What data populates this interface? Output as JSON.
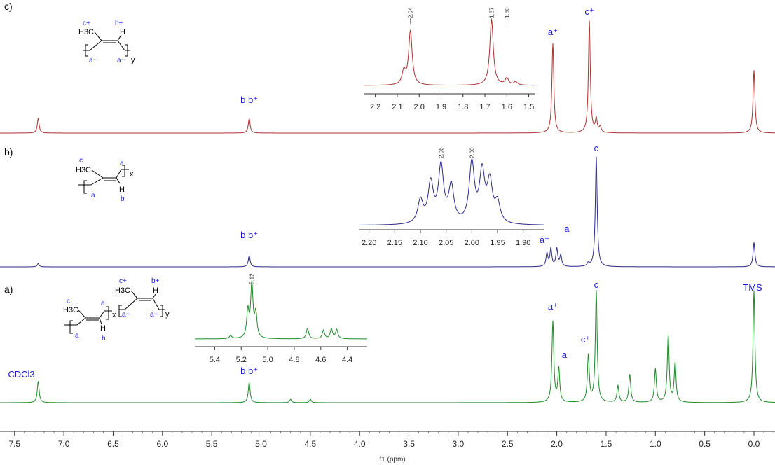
{
  "chart_data": {
    "type": "line",
    "title": "",
    "xlabel": "f1 (ppm)",
    "ylabel": "",
    "xlim": [
      7.6,
      -0.2
    ],
    "x_reversed": true,
    "x_ticks": [
      "7.5",
      "7.0",
      "6.5",
      "6.0",
      "5.5",
      "5.0",
      "4.5",
      "4.0",
      "3.5",
      "3.0",
      "2.5",
      "2.0",
      "1.5",
      "1.0",
      "0.5",
      "0.0"
    ],
    "grid": false,
    "series": [
      {
        "name": "c)",
        "color": "#b03030",
        "peaks": [
          {
            "ppm": 7.26,
            "height": 0.13
          },
          {
            "ppm": 5.12,
            "height": 0.13
          },
          {
            "ppm": 2.04,
            "height": 0.8
          },
          {
            "ppm": 1.67,
            "height": 1.0
          },
          {
            "ppm": 1.6,
            "height": 0.12
          },
          {
            "ppm": 1.56,
            "height": 0.05
          },
          {
            "ppm": 0.0,
            "height": 0.56
          }
        ],
        "labels": [
          {
            "ppm": 5.12,
            "text": "b b⁺"
          },
          {
            "ppm": 2.04,
            "text": "a⁺"
          },
          {
            "ppm": 1.67,
            "text": "c⁺"
          }
        ],
        "inset": {
          "xlim": [
            2.25,
            1.47
          ],
          "x_ticks": [
            "2.2",
            "2.1",
            "2.0",
            "1.9",
            "1.8",
            "1.7",
            "1.6",
            "1.5"
          ],
          "peak_marks": [
            "2.04",
            "1.67",
            "1.60"
          ],
          "peaks": [
            {
              "ppm": 2.04,
              "height": 0.82
            },
            {
              "ppm": 2.07,
              "height": 0.2
            },
            {
              "ppm": 1.67,
              "height": 1.0
            },
            {
              "ppm": 1.6,
              "height": 0.1
            },
            {
              "ppm": 1.56,
              "height": 0.05
            }
          ]
        }
      },
      {
        "name": "b)",
        "color": "#2a2a8a",
        "peaks": [
          {
            "ppm": 7.26,
            "height": 0.03
          },
          {
            "ppm": 5.12,
            "height": 0.1
          },
          {
            "ppm": 2.1,
            "height": 0.12
          },
          {
            "ppm": 2.06,
            "height": 0.16
          },
          {
            "ppm": 2.0,
            "height": 0.16
          },
          {
            "ppm": 1.96,
            "height": 0.1
          },
          {
            "ppm": 1.68,
            "height": 0.03
          },
          {
            "ppm": 1.6,
            "height": 1.0
          },
          {
            "ppm": 0.0,
            "height": 0.22
          }
        ],
        "labels": [
          {
            "ppm": 5.12,
            "text": "b b⁺"
          },
          {
            "ppm": 2.04,
            "text": "a⁺"
          },
          {
            "ppm": 1.97,
            "text": "a"
          },
          {
            "ppm": 1.6,
            "text": "c"
          }
        ],
        "inset": {
          "xlim": [
            2.22,
            1.86
          ],
          "x_ticks": [
            "2.20",
            "2.15",
            "2.10",
            "2.05",
            "2.00",
            "1.95",
            "1.90"
          ],
          "peak_marks": [
            "2.06",
            "2.00"
          ],
          "peaks": [
            {
              "ppm": 2.1,
              "height": 0.35
            },
            {
              "ppm": 2.08,
              "height": 0.6
            },
            {
              "ppm": 2.06,
              "height": 0.85
            },
            {
              "ppm": 2.04,
              "height": 0.55
            },
            {
              "ppm": 2.0,
              "height": 0.9
            },
            {
              "ppm": 1.98,
              "height": 0.75
            },
            {
              "ppm": 1.965,
              "height": 0.6
            },
            {
              "ppm": 1.95,
              "height": 0.3
            }
          ]
        }
      },
      {
        "name": "a)",
        "color": "#1e8a2a",
        "peaks": [
          {
            "ppm": 7.26,
            "height": 0.19
          },
          {
            "ppm": 5.12,
            "height": 0.18
          },
          {
            "ppm": 4.7,
            "height": 0.03
          },
          {
            "ppm": 4.5,
            "height": 0.03
          },
          {
            "ppm": 2.04,
            "height": 0.72
          },
          {
            "ppm": 1.98,
            "height": 0.3
          },
          {
            "ppm": 1.68,
            "height": 0.42
          },
          {
            "ppm": 1.6,
            "height": 1.0
          },
          {
            "ppm": 1.38,
            "height": 0.15
          },
          {
            "ppm": 1.26,
            "height": 0.25
          },
          {
            "ppm": 1.0,
            "height": 0.3
          },
          {
            "ppm": 0.87,
            "height": 0.6
          },
          {
            "ppm": 0.8,
            "height": 0.35
          },
          {
            "ppm": 0.0,
            "height": 1.0
          }
        ],
        "labels": [
          {
            "ppm": 7.26,
            "text": "CDCl3"
          },
          {
            "ppm": 5.12,
            "text": "b b⁺"
          },
          {
            "ppm": 2.04,
            "text": "a⁺"
          },
          {
            "ppm": 1.98,
            "text": "a"
          },
          {
            "ppm": 1.68,
            "text": "c⁺"
          },
          {
            "ppm": 1.6,
            "text": "c"
          },
          {
            "ppm": 0.0,
            "text": "TMS"
          }
        ],
        "inset": {
          "xlim": [
            5.55,
            4.25
          ],
          "x_ticks": [
            "5.4",
            "5.2",
            "5.0",
            "4.8",
            "4.6",
            "4.4"
          ],
          "peak_marks": [
            "5.12"
          ],
          "peaks": [
            {
              "ppm": 5.28,
              "height": 0.06
            },
            {
              "ppm": 5.15,
              "height": 0.5
            },
            {
              "ppm": 5.12,
              "height": 1.0
            },
            {
              "ppm": 5.09,
              "height": 0.45
            },
            {
              "ppm": 4.7,
              "height": 0.2
            },
            {
              "ppm": 4.58,
              "height": 0.16
            },
            {
              "ppm": 4.52,
              "height": 0.18
            },
            {
              "ppm": 4.48,
              "height": 0.17
            }
          ]
        }
      }
    ]
  },
  "structures": {
    "c": {
      "top_labels": [
        "c+",
        "b+"
      ],
      "ch3": "H3C",
      "h": "H",
      "bottom_labels": [
        "a+",
        "a+"
      ],
      "sub": "y"
    },
    "b": {
      "top_labels": [
        "c",
        "a"
      ],
      "ch3": "H3C",
      "h": "H",
      "bottom_labels": [
        "a",
        "b"
      ],
      "sub": "x"
    },
    "a": {
      "left_top": "c",
      "left_ch3": "H3C",
      "left_a": "a",
      "left_bottom": [
        "a",
        "b"
      ],
      "left_h": "H",
      "sub_x": "x",
      "right_top": [
        "c+",
        "b+"
      ],
      "right_ch3": "H3C",
      "right_h": "H",
      "right_bottom": [
        "a+",
        "a+"
      ],
      "sub_y": "y"
    }
  }
}
